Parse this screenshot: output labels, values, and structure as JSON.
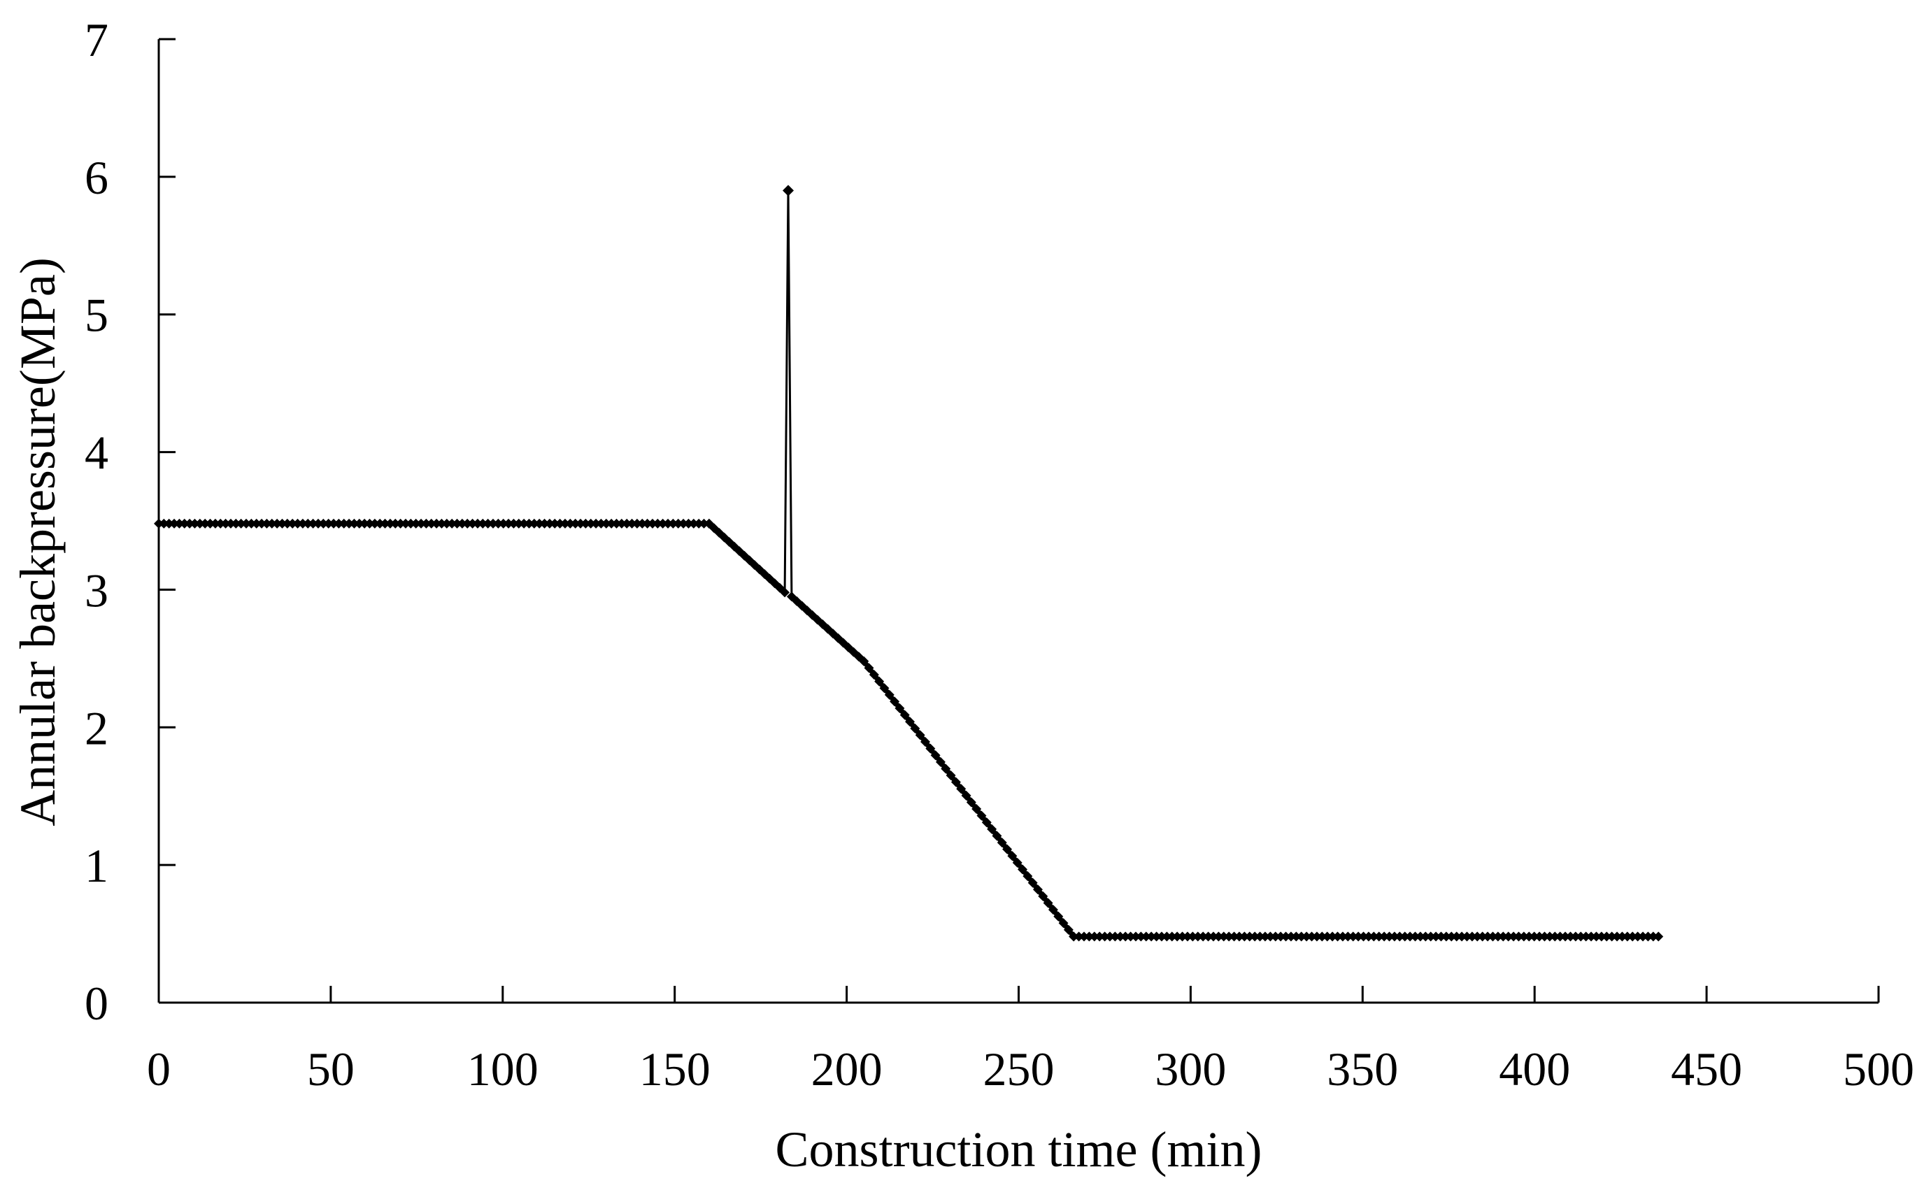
{
  "chart_data": {
    "type": "line",
    "title": "",
    "xlabel": "Construction time (min)",
    "ylabel": "Annular backpressure(MPa)",
    "xlim": [
      0,
      500
    ],
    "ylim": [
      0,
      7
    ],
    "xticks": [
      0,
      50,
      100,
      150,
      200,
      250,
      300,
      350,
      400,
      450,
      500
    ],
    "yticks": [
      0,
      1,
      2,
      3,
      4,
      5,
      6,
      7
    ],
    "grid": false,
    "legend": "none",
    "colors": {
      "line": "#000000",
      "marker": "#000000",
      "axis": "#000000"
    },
    "marker": "diamond",
    "series": [
      {
        "segments": [
          {
            "x_start": 0,
            "x_end": 160,
            "y_start": 3.48,
            "y_end": 3.48
          },
          {
            "x_start": 160,
            "x_end": 182,
            "y_start": 3.48,
            "y_end": 2.98
          },
          {
            "x_start": 182,
            "x_end": 183,
            "y_start": 2.98,
            "y_end": 5.9,
            "thin": true
          },
          {
            "x_start": 183,
            "x_end": 184,
            "y_start": 5.9,
            "y_end": 2.95,
            "thin": true
          },
          {
            "x_start": 184,
            "x_end": 205,
            "y_start": 2.95,
            "y_end": 2.48
          },
          {
            "x_start": 205,
            "x_end": 266,
            "y_start": 2.48,
            "y_end": 0.48
          },
          {
            "x_start": 266,
            "x_end": 436,
            "y_start": 0.48,
            "y_end": 0.48
          }
        ],
        "point_interval": 1.5
      }
    ]
  }
}
